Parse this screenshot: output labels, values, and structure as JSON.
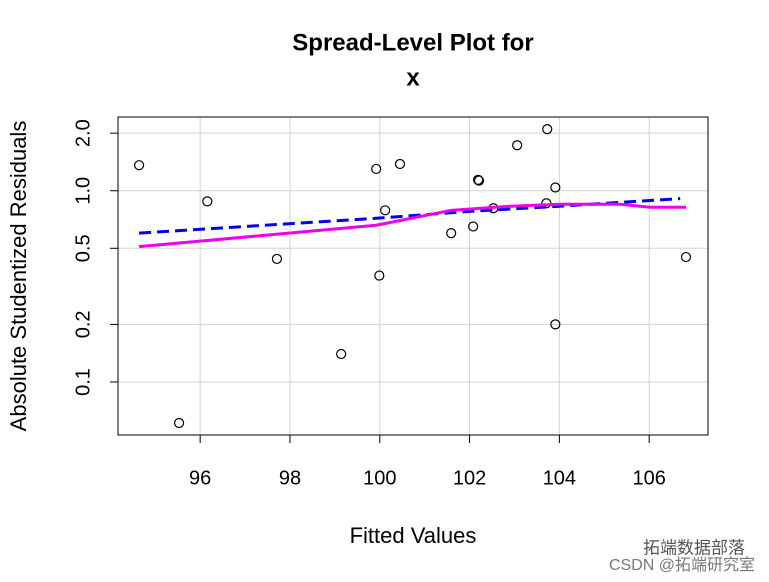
{
  "chart_data": {
    "type": "scatter",
    "title": "Spread-Level Plot for",
    "subtitle": "x",
    "x_label": "Fitted Values",
    "y_label": "Absolute Studentized Residuals",
    "xlim": [
      94.17,
      107.31
    ],
    "ylim": [
      0.0528,
      2.43
    ],
    "ylog": true,
    "grid": true,
    "xticks": [
      96,
      98,
      100,
      102,
      104,
      106
    ],
    "yticks": [
      {
        "value": 2,
        "label": "2.0"
      },
      {
        "value": 1,
        "label": "1.0"
      },
      0.5,
      0.2,
      0.1
    ],
    "series": [
      {
        "kind": "points",
        "color": "#000000",
        "x": [
          94.64,
          95.53,
          96.16,
          97.71,
          99.14,
          99.92,
          99.99,
          100.12,
          100.45,
          101.59,
          102.08,
          102.19,
          102.21,
          102.53,
          103.06,
          103.73,
          103.71,
          103.91,
          103.91,
          106.82
        ],
        "values": [
          1.36,
          0.061,
          0.88,
          0.44,
          0.14,
          1.3,
          0.36,
          0.79,
          1.38,
          0.6,
          0.65,
          1.14,
          1.13,
          0.81,
          1.73,
          2.1,
          0.86,
          1.04,
          0.2,
          0.45
        ]
      },
      {
        "kind": "dashed-line",
        "color": "#0000ee",
        "x": [
          94.64,
          100,
          102,
          104,
          106.69
        ],
        "values": [
          0.6,
          0.72,
          0.78,
          0.83,
          0.91
        ]
      },
      {
        "kind": "line",
        "color": "#ee00ee",
        "x": [
          94.64,
          99.92,
          101.59,
          102.9,
          104.02,
          105.35,
          106.02,
          106.82
        ],
        "values": [
          0.51,
          0.66,
          0.79,
          0.83,
          0.85,
          0.85,
          0.82,
          0.82
        ]
      }
    ],
    "annotations": [
      "拓端数据部落",
      "CSDN @拓端研究室"
    ]
  }
}
